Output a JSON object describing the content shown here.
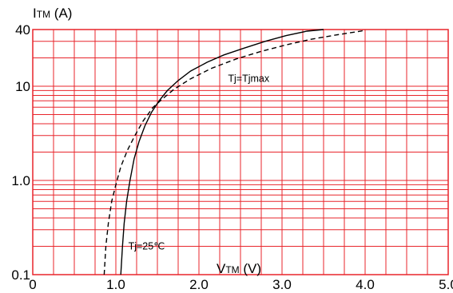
{
  "chart_data": {
    "type": "line",
    "x_scale": "linear",
    "y_scale": "log",
    "xlim": [
      0,
      5.0
    ],
    "ylim": [
      0.1,
      40
    ],
    "x_ticks": [
      {
        "value": 0,
        "label": "0"
      },
      {
        "value": 1.0,
        "label": "1.0"
      },
      {
        "value": 2.0,
        "label": "2.0"
      },
      {
        "value": 3.0,
        "label": "3.0"
      },
      {
        "value": 4.0,
        "label": "4.0"
      },
      {
        "value": 5.0,
        "label": "5.0"
      }
    ],
    "y_ticks": [
      {
        "value": 0.1,
        "label": "0.1"
      },
      {
        "value": 1.0,
        "label": "1.0"
      },
      {
        "value": 10,
        "label": "10"
      },
      {
        "value": 40,
        "label": "40"
      }
    ],
    "ylabel": {
      "main": "I",
      "sub": "TM",
      "unit": " (A)"
    },
    "xlabel": {
      "main": "V",
      "sub": "TM",
      "unit": " (V)"
    },
    "grid": true,
    "grid_color": "#e8252b",
    "series": [
      {
        "name": "Tj=25℃",
        "style": "solid",
        "color": "#000000",
        "points": [
          [
            1.06,
            0.1
          ],
          [
            1.08,
            0.2
          ],
          [
            1.1,
            0.35
          ],
          [
            1.13,
            0.6
          ],
          [
            1.17,
            1.0
          ],
          [
            1.22,
            1.7
          ],
          [
            1.28,
            2.6
          ],
          [
            1.35,
            3.8
          ],
          [
            1.43,
            5.3
          ],
          [
            1.52,
            7.0
          ],
          [
            1.62,
            9.0
          ],
          [
            1.75,
            11.5
          ],
          [
            1.9,
            14.5
          ],
          [
            2.1,
            18
          ],
          [
            2.3,
            21.5
          ],
          [
            2.55,
            25.5
          ],
          [
            2.8,
            30
          ],
          [
            3.05,
            34.5
          ],
          [
            3.3,
            38.5
          ],
          [
            3.5,
            40
          ]
        ]
      },
      {
        "name": "Tj=Tjmax",
        "style": "dashed",
        "color": "#000000",
        "points": [
          [
            0.86,
            0.1
          ],
          [
            0.88,
            0.2
          ],
          [
            0.91,
            0.35
          ],
          [
            0.95,
            0.6
          ],
          [
            1.0,
            0.9
          ],
          [
            1.06,
            1.4
          ],
          [
            1.14,
            2.1
          ],
          [
            1.23,
            3.0
          ],
          [
            1.33,
            4.3
          ],
          [
            1.45,
            6.0
          ],
          [
            1.55,
            7.2
          ],
          [
            1.7,
            9.3
          ],
          [
            1.9,
            12
          ],
          [
            2.15,
            15.5
          ],
          [
            2.45,
            19.5
          ],
          [
            2.75,
            23.5
          ],
          [
            3.05,
            27.5
          ],
          [
            3.35,
            31.5
          ],
          [
            3.65,
            35
          ],
          [
            3.95,
            38.5
          ],
          [
            4.0,
            39.5
          ]
        ]
      }
    ],
    "annotations": [
      {
        "text": "Tj=Tjmax",
        "x": 2.35,
        "y": 12
      },
      {
        "text": "Tj=25℃",
        "x": 1.15,
        "y": 0.2
      }
    ]
  }
}
